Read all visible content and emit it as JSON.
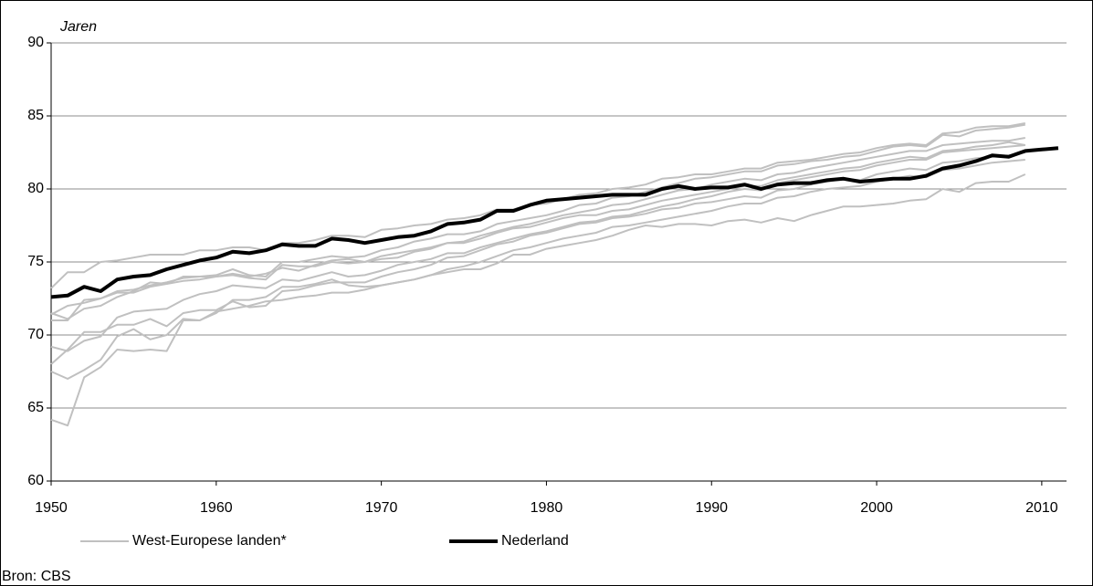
{
  "chart_data": {
    "type": "line",
    "y_label": "Jaren",
    "source": "Bron: CBS",
    "x": [
      1950,
      1951,
      1952,
      1953,
      1954,
      1955,
      1956,
      1957,
      1958,
      1959,
      1960,
      1961,
      1962,
      1963,
      1964,
      1965,
      1966,
      1967,
      1968,
      1969,
      1970,
      1971,
      1972,
      1973,
      1974,
      1975,
      1976,
      1977,
      1978,
      1979,
      1980,
      1981,
      1982,
      1983,
      1984,
      1985,
      1986,
      1987,
      1988,
      1989,
      1990,
      1991,
      1992,
      1993,
      1994,
      1995,
      1996,
      1997,
      1998,
      1999,
      2000,
      2001,
      2002,
      2003,
      2004,
      2005,
      2006,
      2007,
      2008,
      2009,
      2010,
      2011
    ],
    "xlim": [
      1950,
      2011.5
    ],
    "xticks": [
      1950,
      1960,
      1970,
      1980,
      1990,
      2000,
      2010
    ],
    "ylim": [
      60,
      90
    ],
    "yticks": [
      60,
      65,
      70,
      75,
      80,
      85,
      90
    ],
    "grid": true,
    "series": [
      {
        "name": "West-Europese landen*",
        "color": "#c0c0c0",
        "lines": [
          [
            73.2,
            74.3,
            74.3,
            75.0,
            75.1,
            75.3,
            75.5,
            75.5,
            75.5,
            75.8,
            75.8,
            76.0,
            76.0,
            75.8,
            76.3,
            76.3,
            76.5,
            76.8,
            76.8,
            76.7,
            77.2,
            77.3,
            77.5,
            77.6,
            77.9,
            78.0,
            78.2,
            78.6,
            78.6,
            78.9,
            79.0,
            79.3,
            79.6,
            79.7,
            80.0,
            80.1,
            80.3,
            80.7,
            80.8,
            81.0,
            81.0,
            81.2,
            81.4,
            81.4,
            81.8,
            81.9,
            82.0,
            82.2,
            82.4,
            82.5,
            82.8,
            83.0,
            83.1,
            83.0,
            83.8,
            83.9,
            84.2,
            84.3,
            84.3,
            84.5,
            null,
            null
          ],
          [
            71.0,
            71.0,
            72.4,
            72.5,
            73.0,
            73.1,
            73.4,
            73.6,
            73.9,
            74.0,
            74.1,
            74.5,
            74.1,
            74.0,
            75.0,
            75.0,
            75.2,
            75.4,
            75.3,
            75.4,
            75.8,
            76.0,
            76.4,
            76.6,
            76.9,
            76.9,
            77.1,
            77.6,
            77.8,
            78.0,
            78.2,
            78.5,
            78.9,
            79.0,
            79.4,
            79.5,
            79.8,
            80.1,
            80.4,
            80.7,
            80.8,
            81.0,
            81.2,
            81.2,
            81.6,
            81.7,
            81.9,
            82.0,
            82.2,
            82.3,
            82.6,
            82.9,
            83.0,
            82.9,
            83.7,
            83.6,
            84.0,
            84.1,
            84.2,
            84.4,
            null,
            null
          ],
          [
            71.4,
            72.0,
            72.2,
            72.5,
            72.9,
            72.9,
            73.3,
            73.5,
            73.7,
            73.8,
            74.0,
            74.2,
            74.0,
            74.2,
            74.6,
            74.4,
            74.8,
            75.1,
            75.2,
            75.0,
            75.4,
            75.6,
            75.8,
            76.0,
            76.3,
            76.4,
            76.8,
            77.1,
            77.4,
            77.6,
            77.9,
            78.2,
            78.4,
            78.6,
            78.9,
            79.0,
            79.3,
            79.6,
            79.9,
            80.0,
            80.3,
            80.5,
            80.7,
            80.6,
            81.0,
            81.1,
            81.4,
            81.6,
            81.8,
            82.0,
            82.2,
            82.4,
            82.6,
            82.6,
            83.0,
            83.1,
            83.2,
            83.3,
            83.3,
            83.5,
            null,
            null
          ],
          [
            69.2,
            68.9,
            69.6,
            69.9,
            71.2,
            71.6,
            71.7,
            71.8,
            72.4,
            72.8,
            73.0,
            73.4,
            73.3,
            73.2,
            73.8,
            73.7,
            74.0,
            74.3,
            74.0,
            74.1,
            74.4,
            74.8,
            75.0,
            75.2,
            75.6,
            75.6,
            76.0,
            76.3,
            76.6,
            76.9,
            77.1,
            77.4,
            77.7,
            77.8,
            78.1,
            78.2,
            78.5,
            78.8,
            79.0,
            79.3,
            79.5,
            79.8,
            80.0,
            79.9,
            80.4,
            80.6,
            80.8,
            81.0,
            81.2,
            81.3,
            81.6,
            81.8,
            82.0,
            82.0,
            82.5,
            82.6,
            82.7,
            82.8,
            82.9,
            83.0,
            null,
            null
          ],
          [
            68.0,
            69.0,
            70.2,
            70.2,
            70.7,
            70.7,
            71.1,
            70.6,
            71.5,
            71.7,
            71.7,
            72.3,
            71.9,
            72.0,
            73.0,
            73.1,
            73.4,
            73.6,
            73.6,
            73.6,
            74.0,
            74.3,
            74.5,
            74.8,
            75.3,
            75.4,
            75.8,
            76.2,
            76.4,
            76.8,
            77.0,
            77.3,
            77.6,
            77.7,
            78.0,
            78.1,
            78.3,
            78.6,
            78.7,
            79.0,
            79.1,
            79.3,
            79.5,
            79.4,
            79.9,
            80.0,
            80.3,
            80.5,
            80.7,
            80.6,
            81.0,
            81.2,
            81.4,
            81.3,
            81.8,
            81.9,
            82.1,
            82.2,
            82.3,
            82.5,
            null,
            null
          ],
          [
            67.5,
            67.0,
            67.6,
            68.3,
            69.9,
            70.4,
            69.7,
            70.0,
            71.1,
            71.0,
            71.6,
            71.8,
            72.0,
            72.3,
            72.4,
            72.6,
            72.7,
            72.9,
            72.9,
            73.1,
            73.4,
            73.6,
            73.8,
            74.1,
            74.5,
            74.7,
            75.0,
            75.4,
            75.8,
            76.0,
            76.3,
            76.6,
            76.8,
            77.0,
            77.4,
            77.5,
            77.7,
            77.9,
            78.1,
            78.3,
            78.5,
            78.8,
            79.0,
            79.0,
            79.4,
            79.5,
            79.8,
            80.0,
            80.1,
            80.2,
            80.5,
            80.7,
            80.9,
            80.8,
            81.3,
            81.4,
            81.6,
            81.8,
            81.9,
            82.0,
            null,
            null
          ],
          [
            64.2,
            63.8,
            67.1,
            67.8,
            69.0,
            68.9,
            69.0,
            68.9,
            71.0,
            71.0,
            71.5,
            72.4,
            72.4,
            72.6,
            73.3,
            73.3,
            73.5,
            73.8,
            73.4,
            73.3,
            73.4,
            73.6,
            73.8,
            74.1,
            74.3,
            74.5,
            74.5,
            74.9,
            75.5,
            75.5,
            75.9,
            76.1,
            76.3,
            76.5,
            76.8,
            77.2,
            77.5,
            77.4,
            77.6,
            77.6,
            77.5,
            77.8,
            77.9,
            77.7,
            78.0,
            77.8,
            78.2,
            78.5,
            78.8,
            78.8,
            78.9,
            79.0,
            79.2,
            79.3,
            80.0,
            79.8,
            80.4,
            80.5,
            80.5,
            81.0,
            null,
            null
          ],
          [
            71.5,
            71.1,
            71.8,
            72.0,
            72.6,
            73.0,
            73.6,
            73.5,
            74.0,
            74.0,
            74.0,
            74.1,
            73.9,
            73.8,
            74.8,
            74.7,
            74.7,
            75.0,
            74.9,
            75.0,
            75.2,
            75.3,
            75.7,
            75.9,
            76.3,
            76.3,
            76.6,
            77.0,
            77.3,
            77.4,
            77.7,
            78.0,
            78.2,
            78.2,
            78.5,
            78.6,
            78.9,
            79.2,
            79.4,
            79.6,
            79.8,
            80.0,
            80.2,
            80.2,
            80.6,
            80.8,
            81.0,
            81.2,
            81.4,
            81.5,
            81.8,
            82.0,
            82.2,
            82.1,
            82.6,
            82.7,
            82.9,
            83.0,
            83.2,
            83.0,
            null,
            null
          ]
        ]
      },
      {
        "name": "Nederland",
        "color": "#000000",
        "values": [
          72.6,
          72.7,
          73.3,
          73.0,
          73.8,
          74.0,
          74.1,
          74.5,
          74.8,
          75.1,
          75.3,
          75.7,
          75.6,
          75.8,
          76.2,
          76.1,
          76.1,
          76.6,
          76.5,
          76.3,
          76.5,
          76.7,
          76.8,
          77.1,
          77.6,
          77.7,
          77.9,
          78.5,
          78.5,
          78.9,
          79.2,
          79.3,
          79.4,
          79.5,
          79.6,
          79.6,
          79.6,
          80.0,
          80.2,
          80.0,
          80.1,
          80.1,
          80.3,
          80.0,
          80.3,
          80.4,
          80.4,
          80.6,
          80.7,
          80.5,
          80.6,
          80.7,
          80.7,
          80.9,
          81.4,
          81.6,
          81.9,
          82.3,
          82.2,
          82.6,
          82.7,
          82.8
        ]
      }
    ]
  }
}
